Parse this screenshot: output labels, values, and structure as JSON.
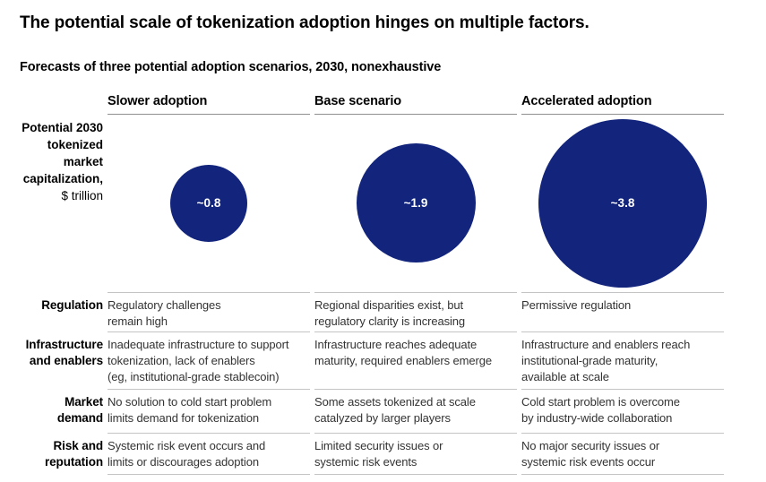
{
  "title": "The potential scale of tokenization adoption hinges on multiple factors.",
  "subtitle": "Forecasts of three potential adoption scenarios, 2030, nonexhaustive",
  "colors": {
    "bubble": "#12247c",
    "bubble_text": "#ffffff",
    "header_rule": "#8f8f8f",
    "row_rule": "#c4c4c4",
    "cell_text": "#333333"
  },
  "chart_data": {
    "type": "bubble",
    "title": "Forecasts of three potential adoption scenarios, 2030, nonexhaustive",
    "categories": [
      "Slower adoption",
      "Base scenario",
      "Accelerated adoption"
    ],
    "metric": "Potential 2030 tokenized market capitalization, $ trillion",
    "metric_label_lines": "Potential 2030\ntokenized\nmarket\ncapitalization,",
    "metric_unit": "$ trillion",
    "values": [
      0.8,
      1.9,
      3.8
    ],
    "value_labels": [
      "~0.8",
      "~1.9",
      "~3.8"
    ],
    "area_proportional": true,
    "bubble_scale": 96.5,
    "rows": [
      {
        "label": "Regulation",
        "cells": [
          "Regulatory challenges\nremain high",
          "Regional disparities exist, but\nregulatory clarity is increasing",
          "Permissive regulation"
        ]
      },
      {
        "label": "Infrastructure\nand enablers",
        "cells": [
          "Inadequate infrastructure to support\ntokenization, lack of enablers\n(eg, institutional-grade stablecoin)",
          "Infrastructure reaches adequate\nmaturity, required enablers emerge",
          "Infrastructure and enablers reach\ninstitutional-grade maturity,\navailable at scale"
        ]
      },
      {
        "label": "Market\ndemand",
        "cells": [
          "No solution to cold start problem\nlimits demand for tokenization",
          "Some assets tokenized at scale\ncatalyzed by larger players",
          "Cold start problem is overcome\nby industry-wide collaboration"
        ]
      },
      {
        "label": "Risk and\nreputation",
        "cells": [
          "Systemic risk event occurs and\nlimits or discourages adoption",
          "Limited security issues or\nsystemic risk events",
          "No major security issues or\nsystemic risk events occur"
        ]
      }
    ]
  }
}
